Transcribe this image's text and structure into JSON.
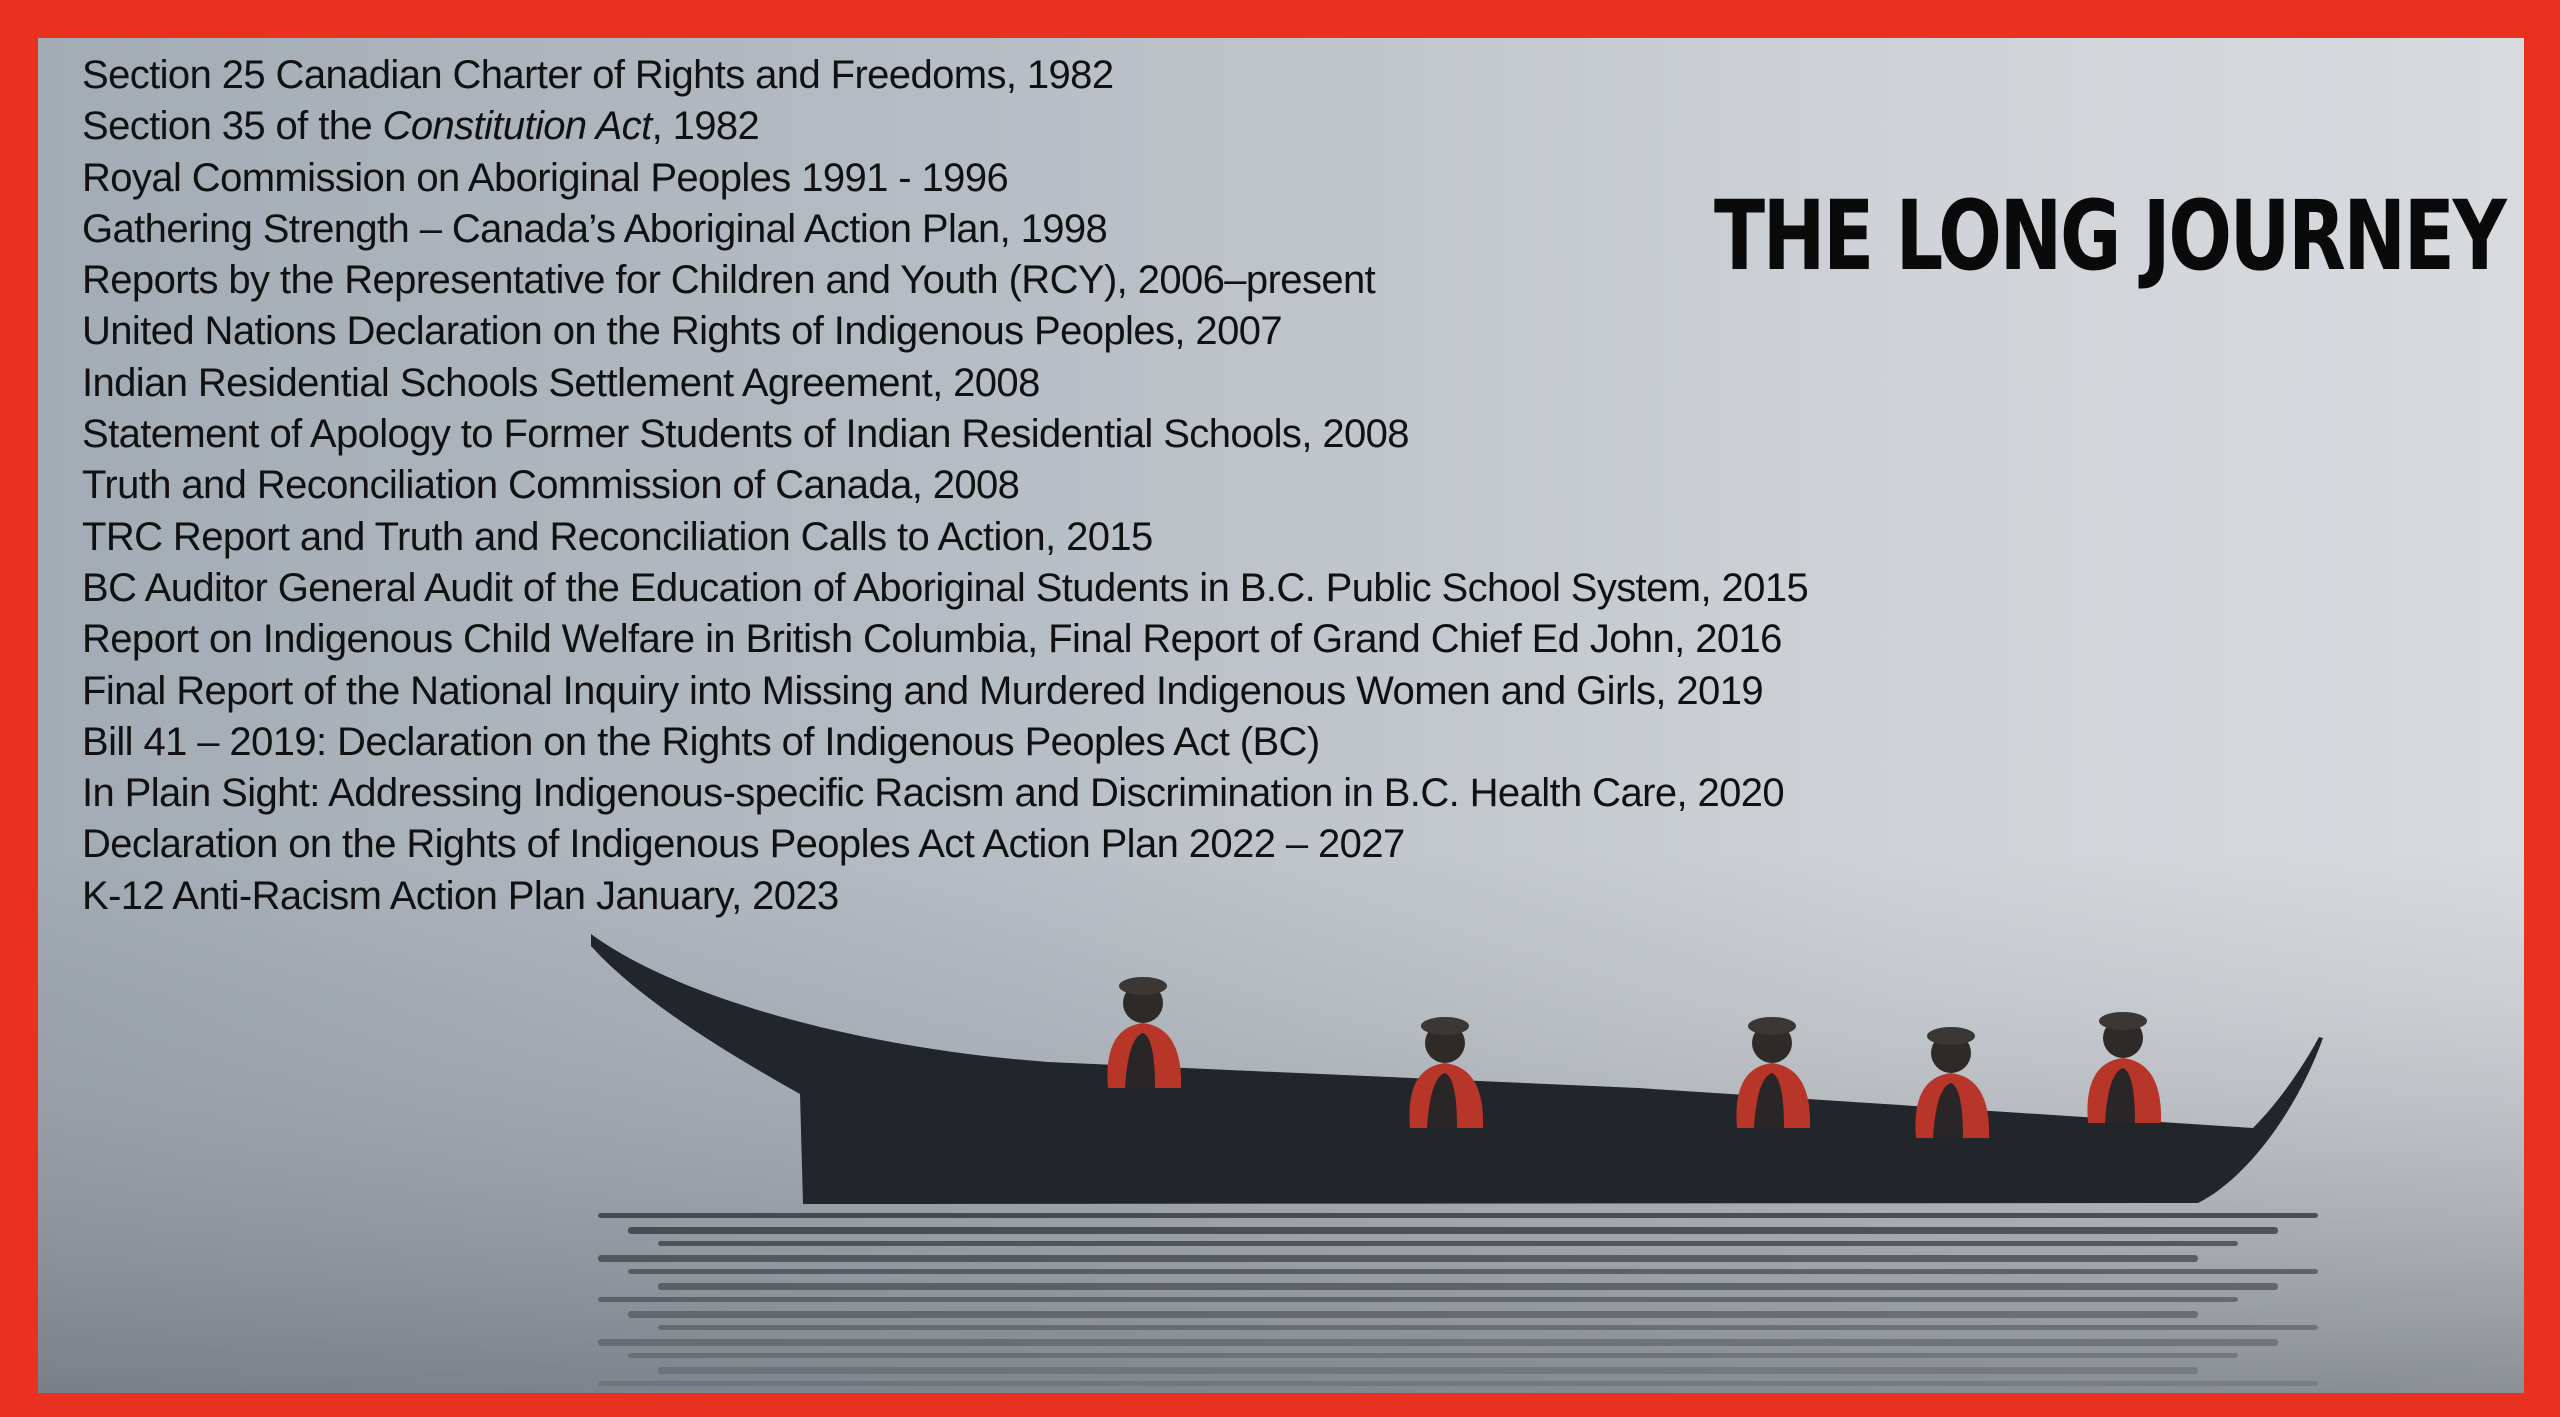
{
  "title": "THE LONG JOURNEY",
  "colors": {
    "border": "#e8321f",
    "text": "#111111",
    "vests": "#b8352a"
  },
  "image": {
    "subject": "canoe-with-paddlers-on-calm-water"
  },
  "items": [
    {
      "text": "Section 25 Canadian Charter of Rights and Freedoms, 1982"
    },
    {
      "pre": "Section 35 of the ",
      "italic": "Constitution Act",
      "post": ", 1982"
    },
    {
      "text": "Royal Commission on Aboriginal Peoples 1991 - 1996"
    },
    {
      "text": "Gathering Strength – Canada’s Aboriginal Action Plan, 1998"
    },
    {
      "text": "Reports by the Representative for Children and Youth (RCY), 2006–present"
    },
    {
      "text": "United Nations Declaration on the Rights of Indigenous Peoples, 2007"
    },
    {
      "text": "Indian Residential Schools Settlement Agreement, 2008"
    },
    {
      "text": "Statement of Apology to Former Students of Indian Residential Schools, 2008"
    },
    {
      "text": "Truth and Reconciliation Commission of Canada, 2008"
    },
    {
      "text": "TRC Report and Truth and Reconciliation Calls to Action, 2015"
    },
    {
      "text": "BC Auditor General Audit of the Education of Aboriginal Students in B.C. Public School System, 2015"
    },
    {
      "text": "Report on Indigenous Child Welfare in British Columbia, Final Report of Grand Chief Ed John, 2016"
    },
    {
      "text": "Final Report of the National Inquiry into Missing and Murdered Indigenous Women and Girls, 2019"
    },
    {
      "text": "Bill 41 – 2019: Declaration on the Rights of Indigenous Peoples Act (BC)"
    },
    {
      "text": "In Plain Sight: Addressing Indigenous-specific Racism and Discrimination in B.C. Health Care, 2020"
    },
    {
      "text": "Declaration on the Rights of Indigenous Peoples Act Action Plan 2022 – 2027"
    },
    {
      "text": "K-12 Anti-Racism Action Plan January, 2023"
    }
  ]
}
